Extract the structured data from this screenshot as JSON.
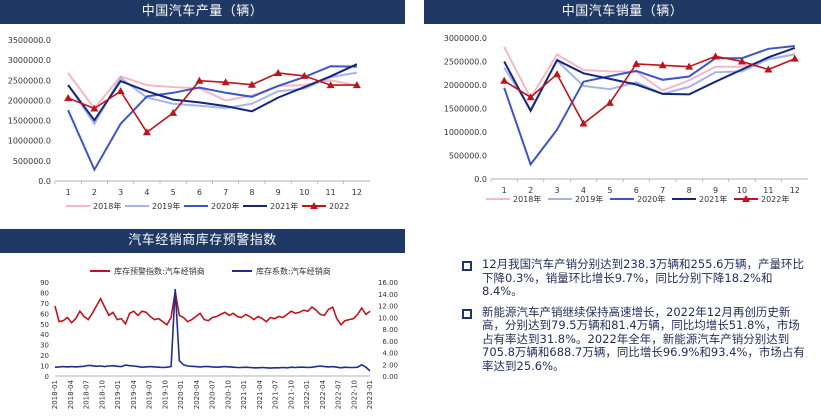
{
  "colors": {
    "header_bg": "#1f3864",
    "y2018": "#f4b8c8",
    "y2019": "#a7b4ea",
    "y2020": "#3d56c4",
    "y2021": "#16267a",
    "y2022": "#c0141c",
    "inventory_alert": "#c0141c",
    "inventory_coef": "#1e2f8c"
  },
  "panels": {
    "production_title": "中国汽车产量（辆）",
    "sales_title": "中国汽车销量（辆）",
    "inventory_title": "汽车经销商库存预警指数"
  },
  "text": {
    "bullets": [
      "12月我国汽车产销分别达到238.3万辆和255.6万辆，产量环比下降0.3%，销量环比增长9.7%，同比分别下降18.2%和8.4%。",
      "新能源汽车产销继续保持高速增长，2022年12月再创历史新高，分别达到79.5万辆和81.4万辆，同比均增长51.8%，市场占有率达到31.8%。2022年全年，新能源汽车产销分别达到705.8万辆和688.7万辆，同比增长96.9%和93.4%，市场占有率达到25.6%。"
    ]
  },
  "chart_data": [
    {
      "id": "production",
      "type": "line",
      "title": "中国汽车产量（辆）",
      "categories": [
        "1",
        "2",
        "3",
        "4",
        "5",
        "6",
        "7",
        "8",
        "9",
        "10",
        "11",
        "12"
      ],
      "ylim": [
        0,
        3500000
      ],
      "yticks": [
        "0.0",
        "500000.0",
        "1000000.0",
        "1500000.0",
        "2000000.0",
        "2500000.0",
        "3000000.0",
        "3500000.0"
      ],
      "legend_position": "bottom",
      "series": [
        {
          "name": "2018年",
          "color_key": "y2018",
          "values": [
            2680000,
            1800000,
            2600000,
            2380000,
            2330000,
            2300000,
            2000000,
            2120000,
            2360000,
            2380000,
            2500000,
            2370000
          ]
        },
        {
          "name": "2019年",
          "color_key": "y2019",
          "values": [
            2390000,
            1420000,
            2560000,
            2070000,
            1920000,
            1870000,
            1810000,
            1920000,
            2230000,
            2290000,
            2580000,
            2690000
          ]
        },
        {
          "name": "2020年",
          "color_key": "y2020",
          "values": [
            1760000,
            280000,
            1420000,
            2100000,
            2190000,
            2320000,
            2190000,
            2090000,
            2360000,
            2580000,
            2850000,
            2840000
          ]
        },
        {
          "name": "2021年",
          "color_key": "y2021",
          "values": [
            2380000,
            1510000,
            2480000,
            2230000,
            2020000,
            1950000,
            1860000,
            1730000,
            2070000,
            2330000,
            2600000,
            2900000
          ]
        },
        {
          "name": "2022",
          "color_key": "y2022",
          "values": [
            2060000,
            1800000,
            2230000,
            1210000,
            1690000,
            2490000,
            2450000,
            2390000,
            2680000,
            2610000,
            2380000,
            2380000
          ]
        }
      ]
    },
    {
      "id": "sales",
      "type": "line",
      "title": "中国汽车销量（辆）",
      "categories": [
        "1",
        "2",
        "3",
        "4",
        "5",
        "6",
        "7",
        "8",
        "9",
        "10",
        "11",
        "12"
      ],
      "ylim": [
        0,
        3000000
      ],
      "yticks": [
        "0.0",
        "500000.0",
        "1000000.0",
        "1500000.0",
        "2000000.0",
        "2500000.0",
        "3000000.0"
      ],
      "legend_position": "bottom",
      "series": [
        {
          "name": "2018年",
          "color_key": "y2018",
          "values": [
            2810000,
            1720000,
            2650000,
            2320000,
            2290000,
            2280000,
            1880000,
            2100000,
            2390000,
            2390000,
            2550000,
            2660000
          ]
        },
        {
          "name": "2019年",
          "color_key": "y2019",
          "values": [
            2370000,
            1480000,
            2520000,
            1980000,
            1910000,
            2060000,
            1810000,
            1960000,
            2270000,
            2290000,
            2550000,
            2650000
          ]
        },
        {
          "name": "2020年",
          "color_key": "y2020",
          "values": [
            1940000,
            310000,
            1050000,
            2070000,
            2190000,
            2300000,
            2110000,
            2180000,
            2570000,
            2570000,
            2770000,
            2830000
          ]
        },
        {
          "name": "2021年",
          "color_key": "y2021",
          "values": [
            2500000,
            1450000,
            2530000,
            2250000,
            2130000,
            2010000,
            1810000,
            1800000,
            2070000,
            2330000,
            2590000,
            2790000
          ]
        },
        {
          "name": "2022年",
          "color_key": "y2022",
          "values": [
            2090000,
            1740000,
            2230000,
            1180000,
            1620000,
            2450000,
            2420000,
            2390000,
            2610000,
            2500000,
            2330000,
            2560000
          ]
        }
      ]
    },
    {
      "id": "inventory",
      "type": "line",
      "title": "汽车经销商库存预警指数",
      "ylim_left": [
        0,
        90
      ],
      "ylim_right": [
        0,
        16
      ],
      "yticks_left": [
        "0",
        "10",
        "20",
        "30",
        "40",
        "50",
        "60",
        "70",
        "80",
        "90"
      ],
      "yticks_right": [
        "0.00",
        "2.00",
        "4.00",
        "6.00",
        "8.00",
        "10.00",
        "12.00",
        "14.00",
        "16.00"
      ],
      "xticks": [
        "2018-01",
        "2018-04",
        "2018-07",
        "2018-10",
        "2019-01",
        "2019-04",
        "2019-07",
        "2019-10",
        "2020-01",
        "2020-04",
        "2020-07",
        "2020-10",
        "2021-01",
        "2021-04",
        "2021-07",
        "2021-10",
        "2022-01",
        "2022-04",
        "2022-07",
        "2022-10",
        "2023-01"
      ],
      "legend_position": "top",
      "series": [
        {
          "name": "库存预警指数:汽车经销商",
          "axis": "left",
          "color_key": "inventory_alert",
          "values": [
            67,
            52,
            53,
            56,
            51,
            55,
            62,
            57,
            54,
            60,
            67,
            74,
            66,
            58,
            61,
            54,
            55,
            50,
            60,
            62,
            58,
            62,
            61,
            57,
            54,
            55,
            52,
            49,
            56,
            81,
            58,
            56,
            52,
            54,
            57,
            60,
            54,
            53,
            56,
            57,
            59,
            61,
            58,
            60,
            57,
            56,
            59,
            57,
            54,
            57,
            55,
            52,
            56,
            55,
            57,
            56,
            59,
            62,
            60,
            61,
            63,
            62,
            66,
            63,
            59,
            58,
            64,
            66,
            55,
            49,
            53,
            54,
            55,
            59,
            65,
            59,
            62
          ]
        },
        {
          "name": "库存系数:汽车经销商",
          "axis": "right",
          "color_key": "inventory_coef",
          "values": [
            1.5,
            1.55,
            1.6,
            1.55,
            1.6,
            1.55,
            1.6,
            1.65,
            1.8,
            1.75,
            1.65,
            1.7,
            1.6,
            1.7,
            1.75,
            1.65,
            1.6,
            1.85,
            1.75,
            1.7,
            1.6,
            1.5,
            1.55,
            1.6,
            1.55,
            1.5,
            1.45,
            1.5,
            1.6,
            14.8,
            2.6,
            1.9,
            1.7,
            1.65,
            1.6,
            1.55,
            1.6,
            1.6,
            1.55,
            1.5,
            1.55,
            1.6,
            1.55,
            1.5,
            1.45,
            1.45,
            1.5,
            1.45,
            1.4,
            1.4,
            1.45,
            1.4,
            1.35,
            1.4,
            1.4,
            1.45,
            1.4,
            1.5,
            1.45,
            1.5,
            1.5,
            1.45,
            1.5,
            1.6,
            1.7,
            1.6,
            1.55,
            1.6,
            1.5,
            1.4,
            1.5,
            1.45,
            1.45,
            1.5,
            1.9,
            1.5,
            0.85
          ]
        }
      ]
    }
  ]
}
